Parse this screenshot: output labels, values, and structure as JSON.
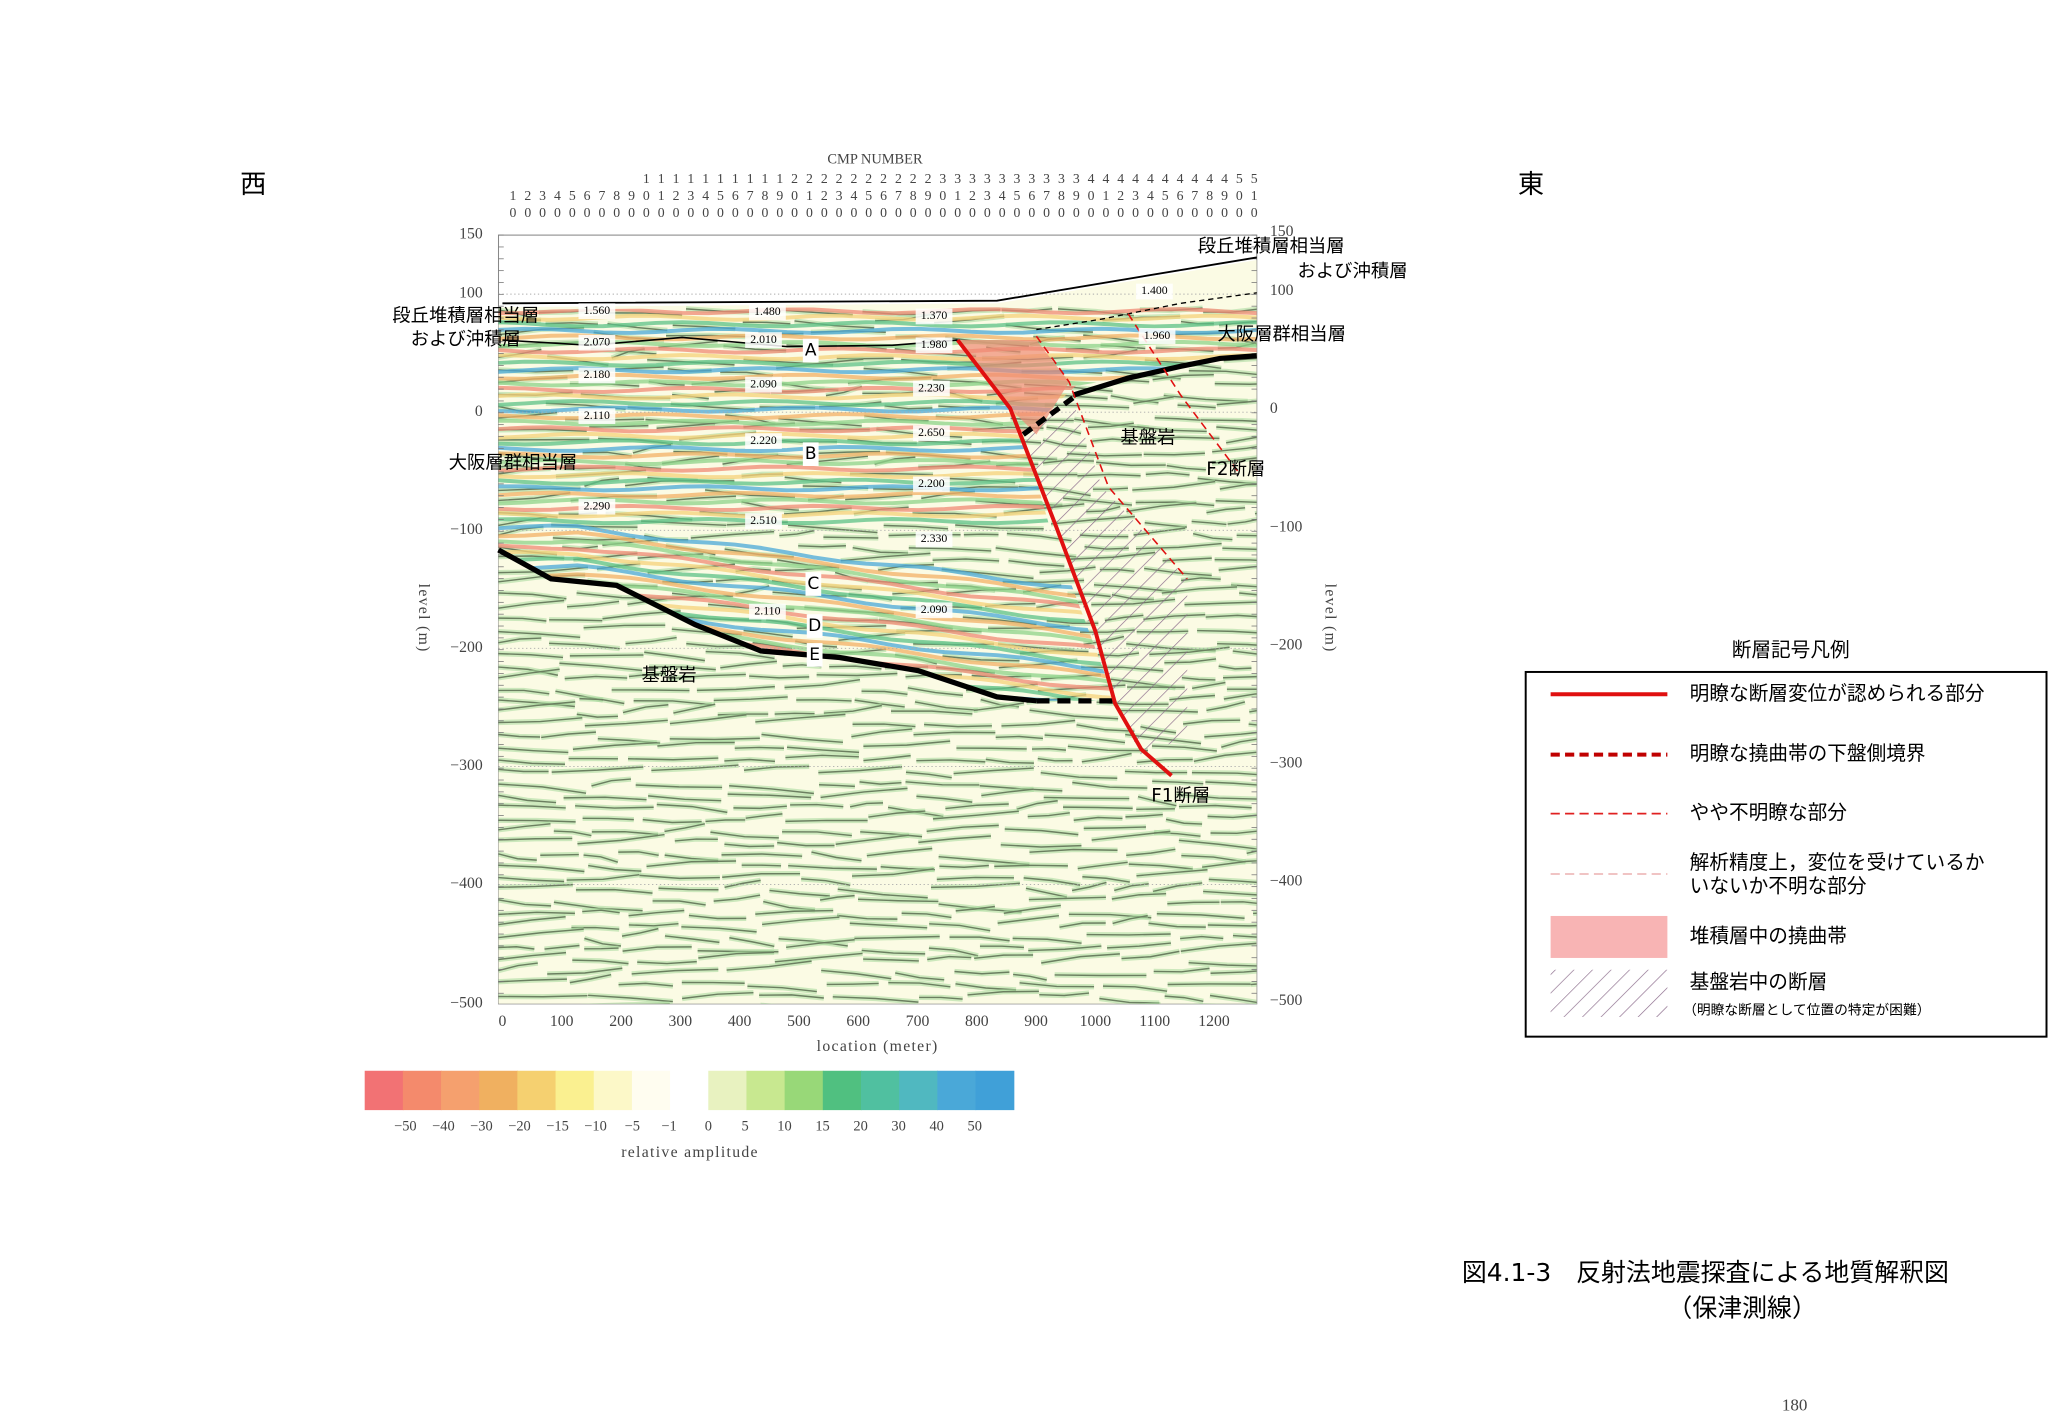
{
  "header": {
    "west": "西",
    "east": "東"
  },
  "section": {
    "cmp_title": "CMP NUMBER",
    "cmp_numbers": [
      "10",
      "20",
      "30",
      "40",
      "50",
      "60",
      "70",
      "80",
      "90",
      "100",
      "110",
      "120",
      "130",
      "140",
      "150",
      "160",
      "170",
      "180",
      "190",
      "200",
      "210",
      "220",
      "230",
      "240",
      "250",
      "260",
      "270",
      "280",
      "290",
      "300",
      "310",
      "320",
      "330",
      "340",
      "350",
      "360",
      "370",
      "380",
      "390",
      "400",
      "410",
      "420",
      "430",
      "440",
      "450",
      "460",
      "470",
      "480",
      "490",
      "500",
      "510"
    ],
    "left_axis_ticks": [
      "150",
      "100",
      "0",
      "−100",
      "−200",
      "−300",
      "−400",
      "−500"
    ],
    "right_axis_ticks": [
      "150",
      "100",
      "0",
      "−100",
      "−200",
      "−300",
      "−400",
      "−500"
    ],
    "y_axis_label": "level (m)",
    "x_axis_ticks": [
      "0",
      "100",
      "200",
      "300",
      "400",
      "500",
      "600",
      "700",
      "800",
      "900",
      "1000",
      "1100",
      "1200"
    ],
    "x_axis_label": "location (meter)",
    "velocity_labels": [
      "1.560",
      "1.480",
      "1.370",
      "1.400",
      "2.070",
      "2.010",
      "1.980",
      "1.960",
      "2.180",
      "2.090",
      "2.230",
      "2.110",
      "2.220",
      "2.650",
      "2.290",
      "2.200",
      "2.510",
      "2.330",
      "2.110",
      "2.090"
    ],
    "horizon_letters": [
      "A",
      "B",
      "C",
      "D",
      "E"
    ],
    "geology_labels": [
      "段丘堆積層相当層",
      "および沖積層",
      "段丘堆積層相当層",
      "および沖積層",
      "大阪層群相当層",
      "大阪層群相当層",
      "基盤岩",
      "基盤岩",
      "F2断層",
      "F1断層"
    ]
  },
  "color_scale": {
    "ticks": [
      "−50",
      "−40",
      "−30",
      "−20",
      "−15",
      "−10",
      "−5",
      "−1",
      "0",
      "5",
      "10",
      "15",
      "20",
      "30",
      "40",
      "50"
    ],
    "label": "relative amplitude"
  },
  "legend": {
    "title": "断層記号凡例",
    "items": [
      {
        "lines": [
          "明瞭な断層変位が認められる部分"
        ]
      },
      {
        "lines": [
          "明瞭な撓曲帯の下盤側境界"
        ]
      },
      {
        "lines": [
          "やや不明瞭な部分"
        ]
      },
      {
        "lines": [
          "解析精度上，変位を受けているか",
          "いないか不明な部分"
        ]
      },
      {
        "lines": [
          "堆積層中の撓曲帯"
        ]
      },
      {
        "lines": [
          "基盤岩中の断層"
        ],
        "note": "（明瞭な断層として位置の特定が困難）"
      }
    ]
  },
  "caption": {
    "title": "図4.1-3　反射法地震探査による地質解釈図",
    "subtitle": "（保津測線）"
  },
  "page_number": "180"
}
